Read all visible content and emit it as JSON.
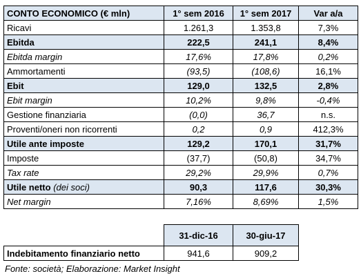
{
  "income_table": {
    "header": [
      "CONTO ECONOMICO (€ mln)",
      "1° sem 2016",
      "1° sem 2017",
      "Var a/a"
    ],
    "rows": [
      {
        "label": "Ricavi",
        "values": [
          "1.261,3",
          "1.353,8",
          "7,3%"
        ]
      },
      {
        "label": "Ebitda",
        "values": [
          "222,5",
          "241,1",
          "8,4%"
        ]
      },
      {
        "label": "Ebitda margin",
        "values": [
          "17,6%",
          "17,8%",
          "0,2%"
        ]
      },
      {
        "label": "Ammortamenti",
        "values": [
          "(93,5)",
          "(108,6)",
          "16,1%"
        ]
      },
      {
        "label": "Ebit",
        "values": [
          "129,0",
          "132,5",
          "2,8%"
        ]
      },
      {
        "label": "Ebit margin",
        "values": [
          "10,2%",
          "9,8%",
          "-0,4%"
        ]
      },
      {
        "label": "Gestione finanziaria",
        "values": [
          "(0,0)",
          "36,7",
          "n.s."
        ]
      },
      {
        "label": "Proventi/oneri non ricorrenti",
        "values": [
          "0,2",
          "0,9",
          "412,3%"
        ]
      },
      {
        "label": "Utile ante imposte",
        "values": [
          "129,2",
          "170,1",
          "31,7%"
        ]
      },
      {
        "label": "Imposte",
        "values": [
          "(37,7)",
          "(50,8)",
          "34,7%"
        ]
      },
      {
        "label": "Tax rate",
        "values": [
          "29,2%",
          "29,9%",
          "0,7%"
        ]
      },
      {
        "label": "Utile netto",
        "label_note": "(dei soci)",
        "values": [
          "90,3",
          "117,6",
          "30,3%"
        ]
      },
      {
        "label": "Net margin",
        "values": [
          "7,16%",
          "8,69%",
          "1,5%"
        ]
      }
    ]
  },
  "debt_table": {
    "header": [
      "31-dic-16",
      "30-giu-17"
    ],
    "row": {
      "label": "Indebitamento finanziario netto",
      "values": [
        "941,6",
        "909,2"
      ]
    }
  },
  "source": "Fonte: società; Elaborazione: Market Insight"
}
